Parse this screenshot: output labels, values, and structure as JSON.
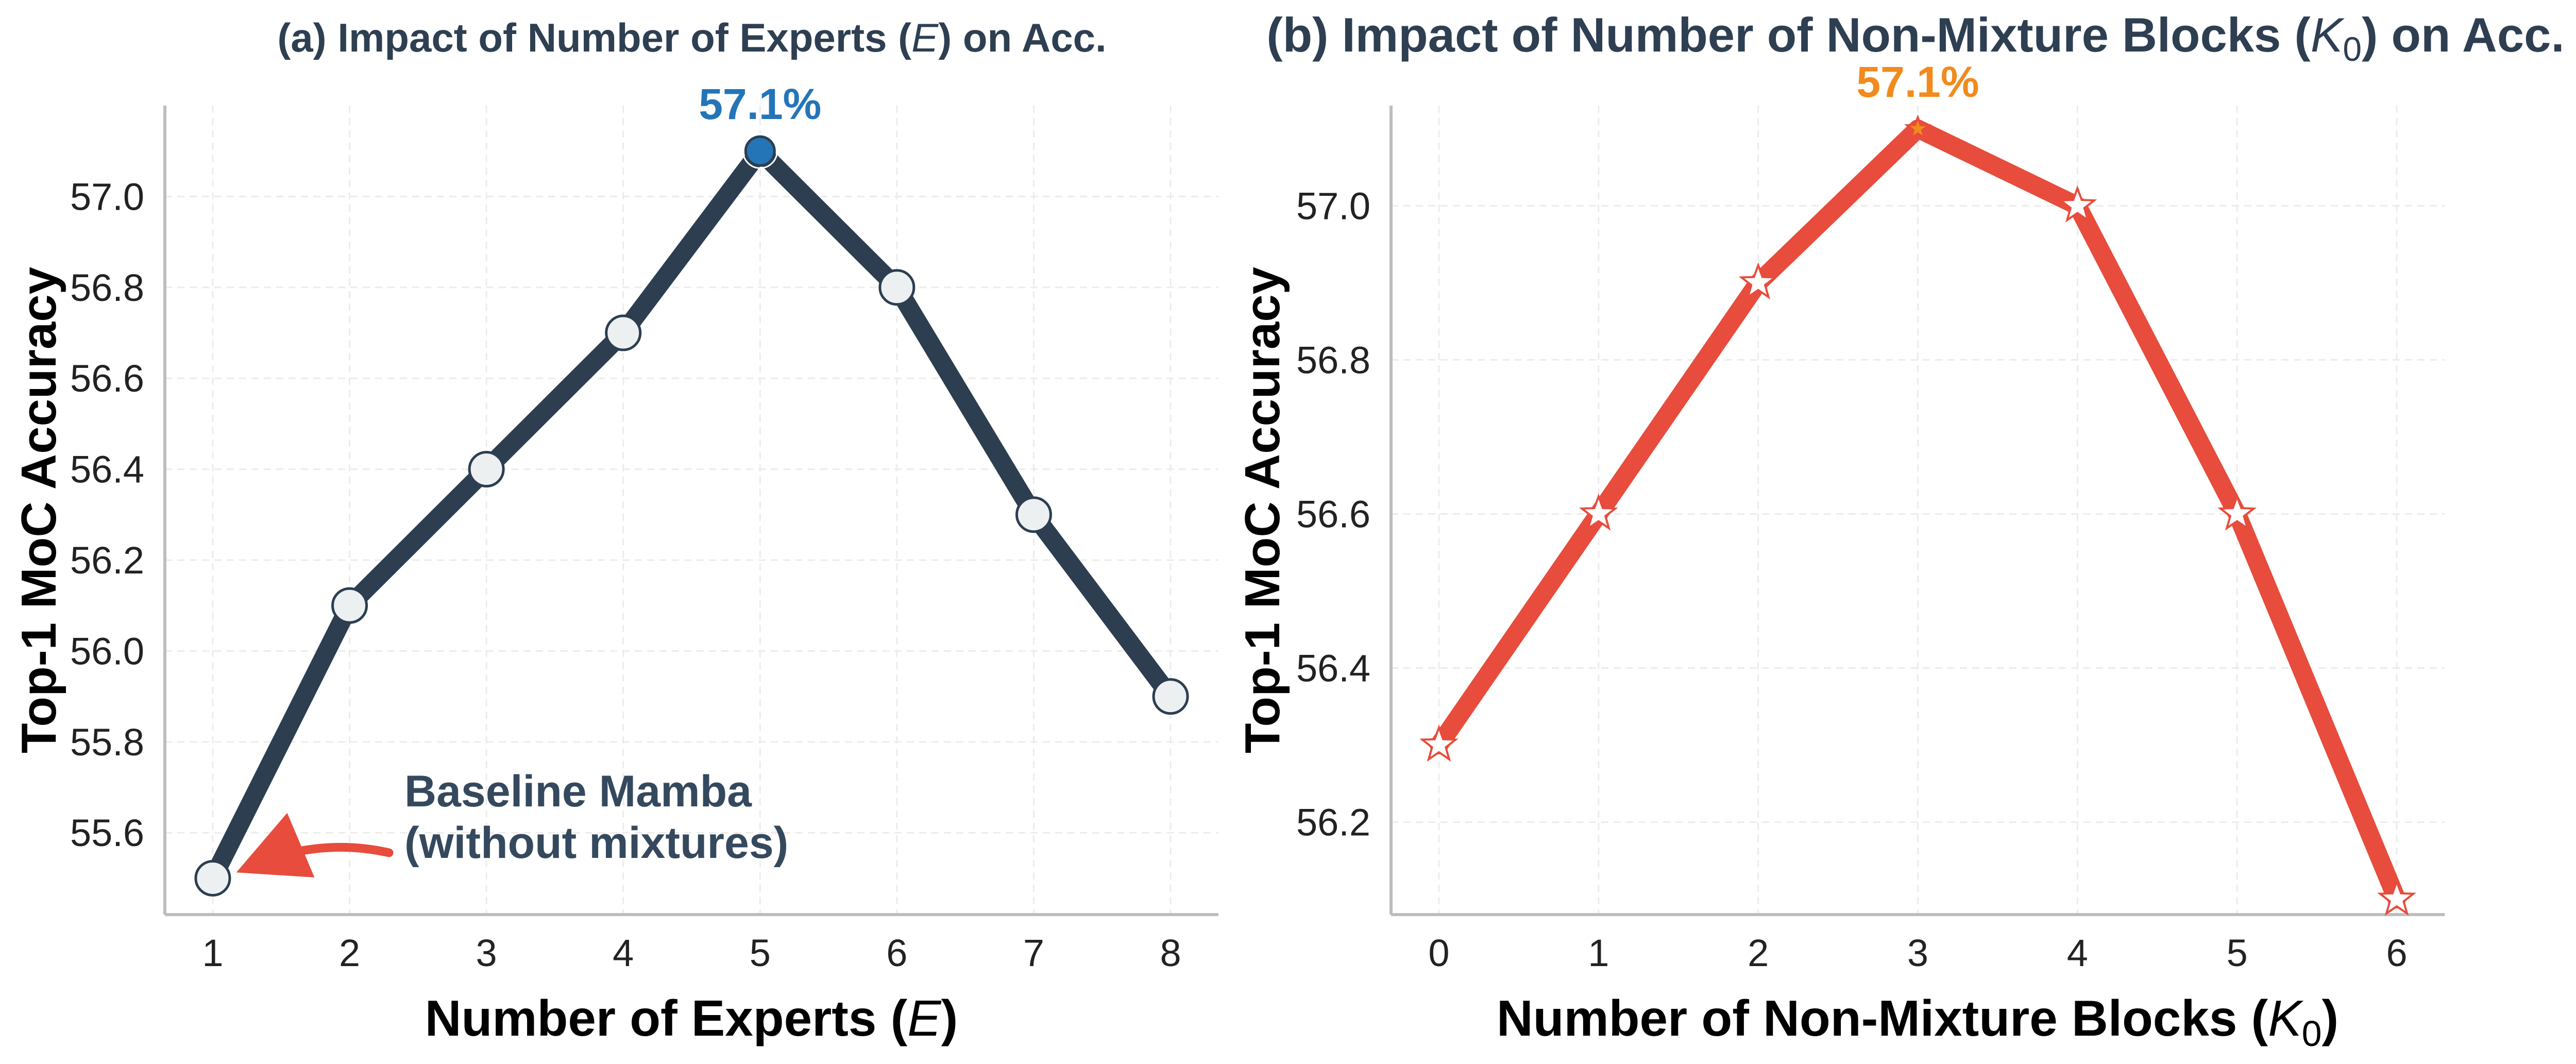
{
  "chart_data": [
    {
      "type": "line",
      "title_prefix": "(a) Impact of Number of Experts (",
      "title_var": "E",
      "title_suffix": ") on Acc.",
      "xlabel_prefix": "Number of Experts (",
      "xlabel_var": "E",
      "xlabel_suffix": ")",
      "ylabel": "Top-1 MoC Accuracy",
      "x": [
        1,
        2,
        3,
        4,
        5,
        6,
        7,
        8
      ],
      "y": [
        55.5,
        56.1,
        56.4,
        56.7,
        57.1,
        56.8,
        56.3,
        55.9
      ],
      "xlim": [
        0.65,
        8.35
      ],
      "ylim": [
        55.42,
        57.2
      ],
      "yticks": [
        "55.6",
        "55.8",
        "56.0",
        "56.2",
        "56.4",
        "56.6",
        "56.8",
        "57.0"
      ],
      "xticks": [
        "1",
        "2",
        "3",
        "4",
        "5",
        "6",
        "7",
        "8"
      ],
      "grid": true,
      "line_color": "#2c3e50",
      "marker": "circle",
      "marker_fill": "#ecf0f1",
      "peak": {
        "x": 5,
        "y": 57.1,
        "label": "57.1%",
        "color": "#2475b8",
        "marker_fill": "#2475b8"
      },
      "annotation": {
        "line1": "Baseline Mamba",
        "line2": "(without mixtures)",
        "points_to_x": 1,
        "points_to_y": 55.5,
        "arrow_color": "#e74c3c"
      }
    },
    {
      "type": "line",
      "title_prefix": "(b) Impact of Number of Non-Mixture Blocks (",
      "title_var": "K",
      "title_sub": "0",
      "title_suffix": ") on Acc.",
      "xlabel_prefix": "Number of Non-Mixture Blocks (",
      "xlabel_var": "K",
      "xlabel_sub": "0",
      "xlabel_suffix": ")",
      "ylabel": "Top-1 MoC Accuracy",
      "x": [
        0,
        1,
        2,
        3,
        4,
        5,
        6
      ],
      "y": [
        56.3,
        56.6,
        56.9,
        57.1,
        57.0,
        56.6,
        56.1
      ],
      "xlim": [
        -0.3,
        6.3
      ],
      "ylim": [
        56.08,
        57.13
      ],
      "yticks": [
        "56.2",
        "56.4",
        "56.6",
        "56.8",
        "57.0"
      ],
      "xticks": [
        "0",
        "1",
        "2",
        "3",
        "4",
        "5",
        "6"
      ],
      "grid": true,
      "line_color": "#e74c3c",
      "marker": "star",
      "marker_fill": "#ffffff",
      "peak": {
        "x": 3,
        "y": 57.1,
        "label": "57.1%",
        "color": "#f28a1c",
        "marker_fill": "#f28a1c"
      }
    }
  ]
}
